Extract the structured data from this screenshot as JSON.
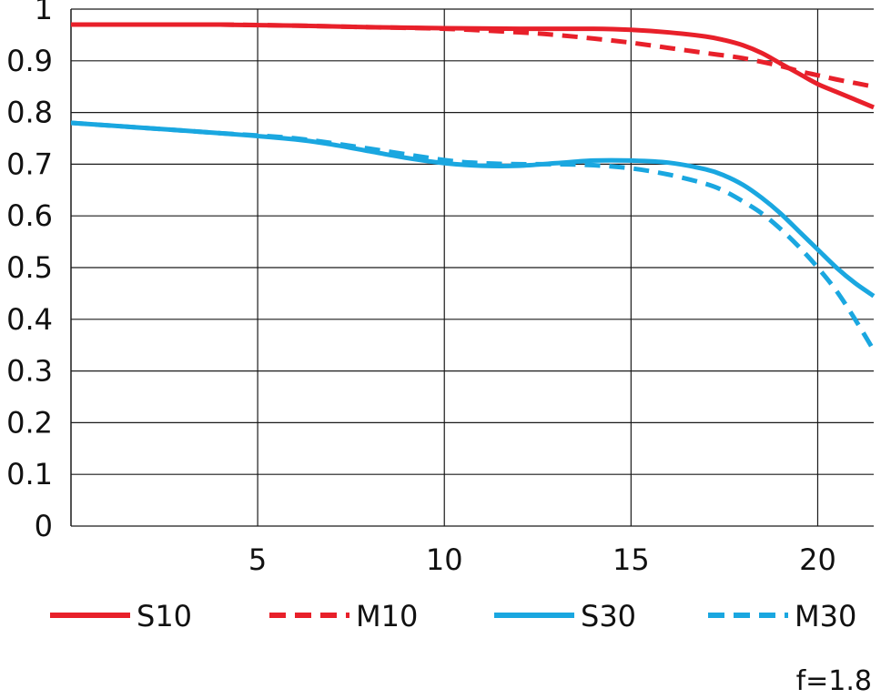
{
  "chart_data": {
    "type": "line",
    "xlim": [
      0,
      21.5
    ],
    "ylim": [
      0,
      1
    ],
    "x_ticks": [
      5,
      10,
      15,
      20
    ],
    "x_tick_labels": [
      "5",
      "10",
      "15",
      "20"
    ],
    "y_ticks": [
      0,
      0.1,
      0.2,
      0.3,
      0.4,
      0.5,
      0.6,
      0.7,
      0.8,
      0.9,
      1
    ],
    "y_tick_labels": [
      "0",
      "0.1",
      "0.2",
      "0.3",
      "0.4",
      "0.5",
      "0.6",
      "0.7",
      "0.8",
      "0.9",
      "1"
    ],
    "grid": true,
    "legend_position": "bottom",
    "annotation": "f=1.8",
    "series": [
      {
        "name": "S10",
        "color": "#e8202a",
        "dash": "solid",
        "x": [
          0,
          2,
          4,
          6,
          8,
          10,
          12,
          14,
          15,
          16,
          17,
          17.5,
          18,
          18.5,
          19,
          19.5,
          20,
          20.5,
          21,
          21.5
        ],
        "y": [
          0.97,
          0.97,
          0.97,
          0.968,
          0.965,
          0.963,
          0.962,
          0.962,
          0.96,
          0.955,
          0.947,
          0.94,
          0.93,
          0.915,
          0.895,
          0.875,
          0.855,
          0.84,
          0.825,
          0.81
        ]
      },
      {
        "name": "M10",
        "color": "#e8202a",
        "dash": "dashed",
        "x": [
          0,
          2,
          4,
          6,
          8,
          10,
          12,
          13,
          14,
          15,
          16,
          17,
          18,
          19,
          19.5,
          20,
          20.5,
          21,
          21.5
        ],
        "y": [
          0.97,
          0.97,
          0.97,
          0.968,
          0.965,
          0.962,
          0.955,
          0.95,
          0.943,
          0.935,
          0.925,
          0.915,
          0.905,
          0.89,
          0.88,
          0.872,
          0.864,
          0.857,
          0.85
        ]
      },
      {
        "name": "S30",
        "color": "#1aa7e0",
        "dash": "solid",
        "x": [
          0,
          2,
          4,
          6,
          7,
          8,
          9,
          10,
          11,
          12,
          13,
          14,
          15,
          16,
          17,
          17.5,
          18,
          18.5,
          19,
          19.5,
          20,
          20.5,
          21,
          21.5
        ],
        "y": [
          0.78,
          0.77,
          0.76,
          0.748,
          0.738,
          0.725,
          0.712,
          0.702,
          0.697,
          0.697,
          0.702,
          0.707,
          0.707,
          0.703,
          0.69,
          0.678,
          0.66,
          0.635,
          0.605,
          0.57,
          0.535,
          0.5,
          0.47,
          0.445
        ]
      },
      {
        "name": "M30",
        "color": "#1aa7e0",
        "dash": "dashed",
        "x": [
          0,
          2,
          4,
          6,
          8,
          10,
          11,
          12,
          13,
          14,
          15,
          16,
          17,
          17.5,
          18,
          18.5,
          19,
          19.5,
          20,
          20.5,
          21,
          21.5
        ],
        "y": [
          0.78,
          0.77,
          0.76,
          0.75,
          0.73,
          0.708,
          0.702,
          0.7,
          0.7,
          0.698,
          0.692,
          0.68,
          0.662,
          0.648,
          0.628,
          0.605,
          0.575,
          0.54,
          0.5,
          0.455,
          0.4,
          0.34
        ]
      }
    ]
  }
}
